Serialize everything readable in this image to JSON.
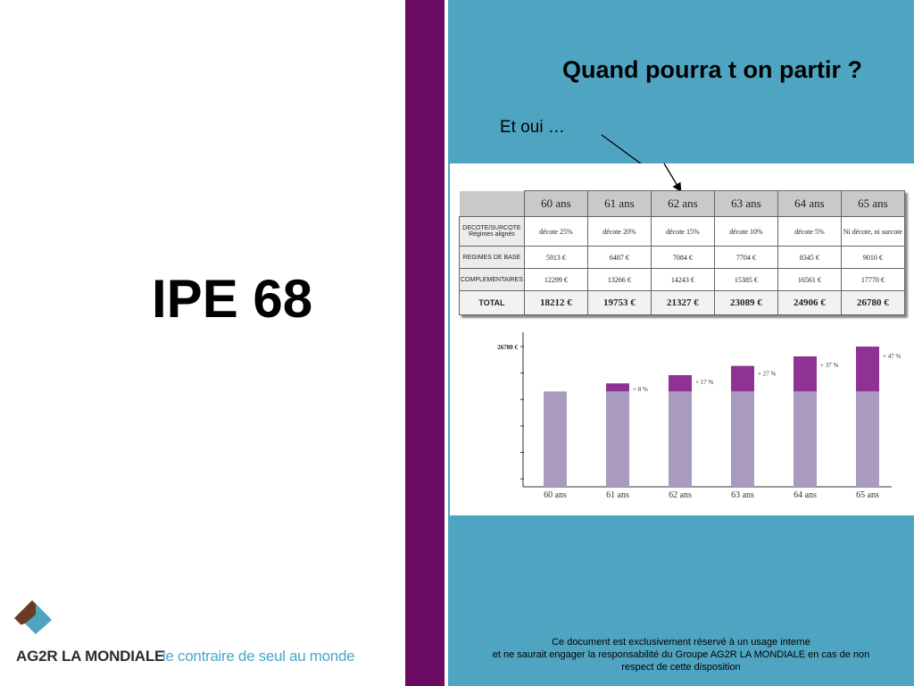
{
  "left": {
    "title": "IPE 68",
    "logo_text": "AG2R LA MONDIALE",
    "logo_tagline": "le contraire de seul au monde"
  },
  "right": {
    "title": "Quand pourra t on partir ?",
    "annotation": "Et oui …",
    "footer_line1": "Ce document est exclusivement réservé à un usage interne",
    "footer_line2": "et ne saurait engager la responsabilité du Groupe AG2R LA MONDIALE en cas de non",
    "footer_line3": "respect de cette disposition"
  },
  "table": {
    "columns": [
      "60 ans",
      "61 ans",
      "62 ans",
      "63 ans",
      "64 ans",
      "65 ans"
    ],
    "rows": [
      {
        "label1": "DECOTE/SURCOTE",
        "label2": "Régimes alignés",
        "values": [
          "décote 25%",
          "décote 20%",
          "décote 15%",
          "décote 10%",
          "décote 5%",
          "Ni décote, ni surcote"
        ]
      },
      {
        "label1": "REGIMES DE BASE",
        "label2": "",
        "values": [
          "5913 €",
          "6487 €",
          "7084 €",
          "7704 €",
          "8345 €",
          "9010 €"
        ]
      },
      {
        "label1": "COMPLEMENTAIRES",
        "label2": "",
        "values": [
          "12299 €",
          "13266 €",
          "14243 €",
          "15385 €",
          "16561 €",
          "17770 €"
        ]
      },
      {
        "label1": "TOTAL",
        "label2": "",
        "values": [
          "18212 €",
          "19753 €",
          "21327 €",
          "23089 €",
          "24906 €",
          "26780 €"
        ]
      }
    ]
  },
  "chart_data": {
    "type": "bar",
    "categories": [
      "60 ans",
      "61 ans",
      "62 ans",
      "63 ans",
      "64 ans",
      "65 ans"
    ],
    "y_marker_label": "26780 €",
    "base_value": 18212,
    "totals": [
      18212,
      19753,
      21327,
      23089,
      24906,
      26780
    ],
    "increase_labels": [
      "",
      "+ 8 %",
      "+ 17 %",
      "+ 27 %",
      "+ 37 %",
      "+ 47 %"
    ],
    "colors": {
      "base": "#a99abf",
      "increase": "#8e3393"
    }
  }
}
